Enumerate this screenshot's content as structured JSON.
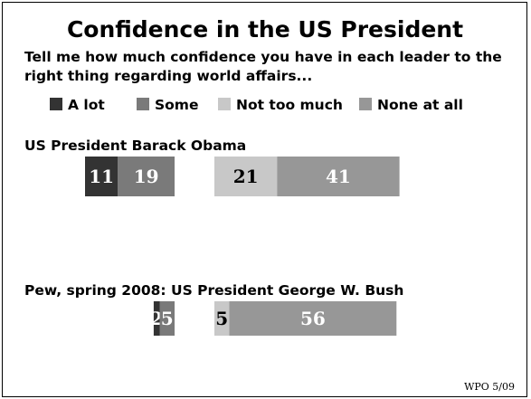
{
  "chart_data": {
    "type": "bar",
    "orientation": "horizontal",
    "stacked": "diverging",
    "title": "Confidence in the US President",
    "subtitle_lines": [
      "Tell me how much confidence you have in each leader to the",
      "right thing regarding world affairs..."
    ],
    "series": [
      {
        "name": "A lot",
        "color": "#333333",
        "label_color": "#ffffff",
        "side": "positive"
      },
      {
        "name": "Some",
        "color": "#7a7a7a",
        "label_color": "#ffffff",
        "side": "positive"
      },
      {
        "name": "Not too much",
        "color": "#c8c8c8",
        "label_color": "#000000",
        "side": "negative"
      },
      {
        "name": "None at all",
        "color": "#979797",
        "label_color": "#ffffff",
        "side": "negative"
      }
    ],
    "rows": [
      {
        "label": "US President Barack Obama",
        "values": [
          11,
          19,
          21,
          41
        ],
        "value_labels": [
          "11",
          "19",
          "21",
          "41"
        ]
      },
      {
        "label": "Pew, spring 2008: US President George W. Bush",
        "values": [
          2,
          5,
          5,
          56
        ],
        "value_labels": [
          "2",
          "5",
          "5",
          "56"
        ]
      }
    ],
    "legend_position": "top",
    "grid": false,
    "source": "WPO 5/09"
  }
}
